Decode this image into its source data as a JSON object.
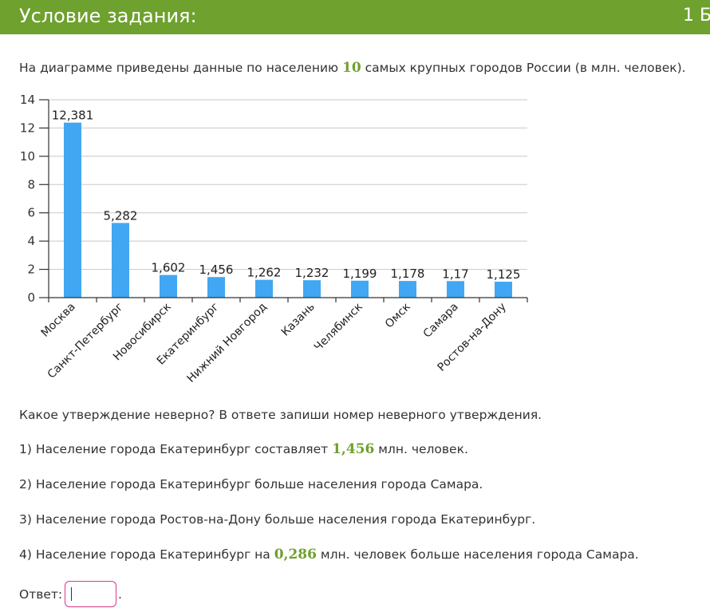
{
  "header": {
    "title": "Условие задания:",
    "points": "1 Б."
  },
  "intro": {
    "before": "На диаграмме приведены данные по населению ",
    "highlight": "10",
    "after": " самых крупных городов России (в млн. человек)."
  },
  "chart_data": {
    "type": "bar",
    "categories": [
      "Москва",
      "Санкт-Петербург",
      "Новосибирск",
      "Екатеринбург",
      "Нижний Новгород",
      "Казань",
      "Челябинск",
      "Омск",
      "Самара",
      "Ростов-на-Дону"
    ],
    "values": [
      12.381,
      5.282,
      1.602,
      1.456,
      1.262,
      1.232,
      1.199,
      1.178,
      1.17,
      1.125
    ],
    "value_labels": [
      "12,381",
      "5,282",
      "1,602",
      "1,456",
      "1,262",
      "1,232",
      "1,199",
      "1,178",
      "1,17",
      "1,125"
    ],
    "yticks": [
      0,
      2,
      4,
      6,
      8,
      10,
      12,
      14
    ],
    "ylim": [
      0,
      14
    ],
    "grid": true,
    "bar_color": "#41a7f2"
  },
  "question": "Какое утверждение неверно? В ответе запиши номер неверного утверждения.",
  "statements": [
    {
      "before": "1) Население города Екатеринбург составляет ",
      "highlight": "1,456",
      "after": " млн. человек."
    },
    {
      "before": "2) Население города Екатеринбург больше населения города Самара.",
      "highlight": "",
      "after": ""
    },
    {
      "before": "3) Население города Ростов-на-Дону больше населения города Екатеринбург.",
      "highlight": "",
      "after": ""
    },
    {
      "before": "4) Население города Екатеринбург на ",
      "highlight": "0,286",
      "after": " млн. человек больше населения города Самара."
    }
  ],
  "answer": {
    "label": "Ответ:",
    "value": "",
    "suffix": "."
  },
  "colors": {
    "accent": "#6ea12e",
    "input_border": "#d63a8b"
  }
}
